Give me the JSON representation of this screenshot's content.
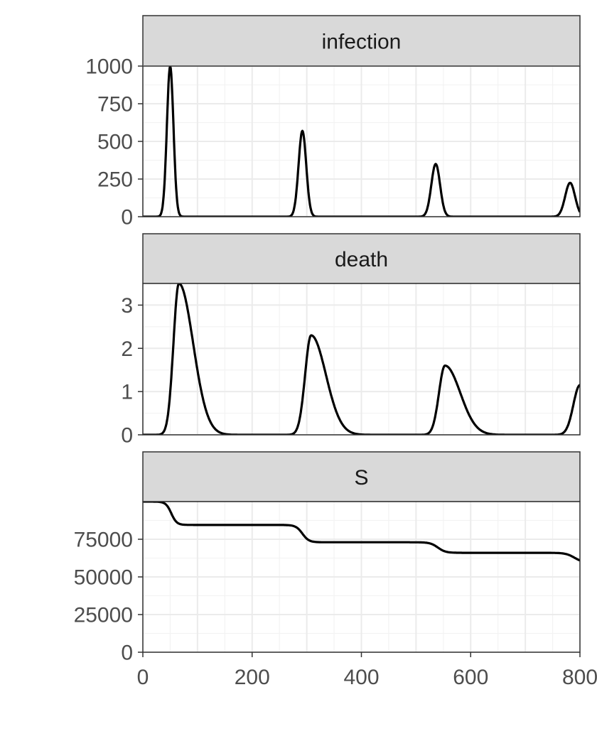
{
  "chart_data": {
    "type": "line",
    "layout": "faceted vertical, shared x axis, free y scales",
    "title": "",
    "xlabel": "",
    "ylabel": "",
    "grid": true,
    "legend": "none",
    "colors": {
      "line": "#000000",
      "strip_fill": "#d9d9d9",
      "strip_border": "#333333",
      "panel_border": "#333333",
      "grid_major": "#ebebeb",
      "grid_minor": "#f3f3f3",
      "tick_text": "#4d4d4d"
    },
    "x_axis": {
      "range": [
        0,
        800
      ],
      "ticks": [
        0,
        200,
        400,
        600,
        800
      ],
      "tick_labels": [
        "0",
        "200",
        "400",
        "600",
        "800"
      ]
    },
    "panels": [
      {
        "strip_label": "infection",
        "ylim": [
          0,
          1000
        ],
        "y_ticks": [
          0,
          250,
          500,
          750,
          1000
        ],
        "y_tick_labels": [
          "0",
          "250",
          "500",
          "750",
          "1000"
        ],
        "series": {
          "kind": "peaks",
          "baseline": 0,
          "peaks": [
            {
              "x": 50,
              "height": 1000,
              "width_left": 6,
              "width_right": 6
            },
            {
              "x": 292,
              "height": 570,
              "width_left": 7,
              "width_right": 7
            },
            {
              "x": 536,
              "height": 350,
              "width_left": 8,
              "width_right": 8
            },
            {
              "x": 782,
              "height": 225,
              "width_left": 9,
              "width_right": 9
            }
          ]
        }
      },
      {
        "strip_label": "death",
        "ylim": [
          0,
          3.5
        ],
        "y_ticks": [
          0,
          1,
          2,
          3
        ],
        "y_tick_labels": [
          "0",
          "1",
          "2",
          "3"
        ],
        "series": {
          "kind": "peaks",
          "baseline": 0,
          "peaks": [
            {
              "x": 66,
              "height": 3.5,
              "width_left": 10,
              "width_right": 26
            },
            {
              "x": 308,
              "height": 2.3,
              "width_left": 11,
              "width_right": 27
            },
            {
              "x": 553,
              "height": 1.6,
              "width_left": 11,
              "width_right": 28
            },
            {
              "x": 800,
              "height": 1.15,
              "width_left": 12,
              "width_right": 28
            }
          ]
        }
      },
      {
        "strip_label": "S",
        "ylim": [
          0,
          100000
        ],
        "y_ticks": [
          0,
          25000,
          50000,
          75000
        ],
        "y_tick_labels": [
          "0",
          "25000",
          "50000",
          "75000"
        ],
        "series": {
          "kind": "steps",
          "start": 100000,
          "steps": [
            {
              "x": 52,
              "to": 84500,
              "width": 5
            },
            {
              "x": 292,
              "to": 73000,
              "width": 6
            },
            {
              "x": 540,
              "to": 66000,
              "width": 7
            },
            {
              "x": 790,
              "to": 59500,
              "width": 8
            }
          ]
        }
      }
    ]
  }
}
